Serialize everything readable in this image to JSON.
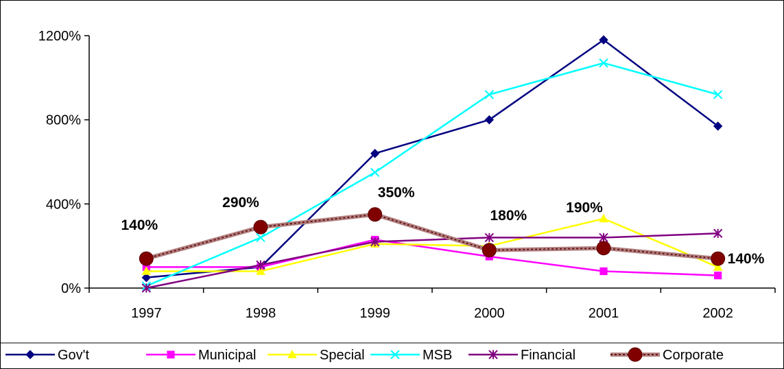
{
  "chart_data": {
    "type": "line",
    "categories": [
      "1997",
      "1998",
      "1999",
      "2000",
      "2001",
      "2002"
    ],
    "ylim": [
      0,
      1200
    ],
    "yticks": [
      0,
      400,
      800,
      1200
    ],
    "ytick_labels": [
      "0%",
      "400%",
      "800%",
      "1200%"
    ],
    "grid": false,
    "legend_placement": "bottom",
    "series": [
      {
        "name": "Gov't",
        "values": [
          50,
          100,
          640,
          800,
          1180,
          770
        ],
        "color": "#000080",
        "marker": "diamond"
      },
      {
        "name": "Municipal",
        "values": [
          100,
          100,
          230,
          150,
          80,
          60
        ],
        "color": "#ff00ff",
        "marker": "square"
      },
      {
        "name": "Special",
        "values": [
          80,
          80,
          210,
          200,
          330,
          100
        ],
        "color": "#ffff00",
        "marker": "triangle"
      },
      {
        "name": "MSB",
        "values": [
          10,
          240,
          550,
          920,
          1070,
          920
        ],
        "color": "#00ffff",
        "marker": "x"
      },
      {
        "name": "Financial",
        "values": [
          0,
          110,
          220,
          240,
          240,
          260
        ],
        "color": "#800080",
        "marker": "asterisk"
      },
      {
        "name": "Corporate",
        "values": [
          140,
          290,
          350,
          180,
          190,
          140
        ],
        "color": "#800000",
        "marker": "circle"
      }
    ],
    "data_labels": [
      "140%",
      "290%",
      "350%",
      "180%",
      "190%",
      "140%"
    ]
  }
}
